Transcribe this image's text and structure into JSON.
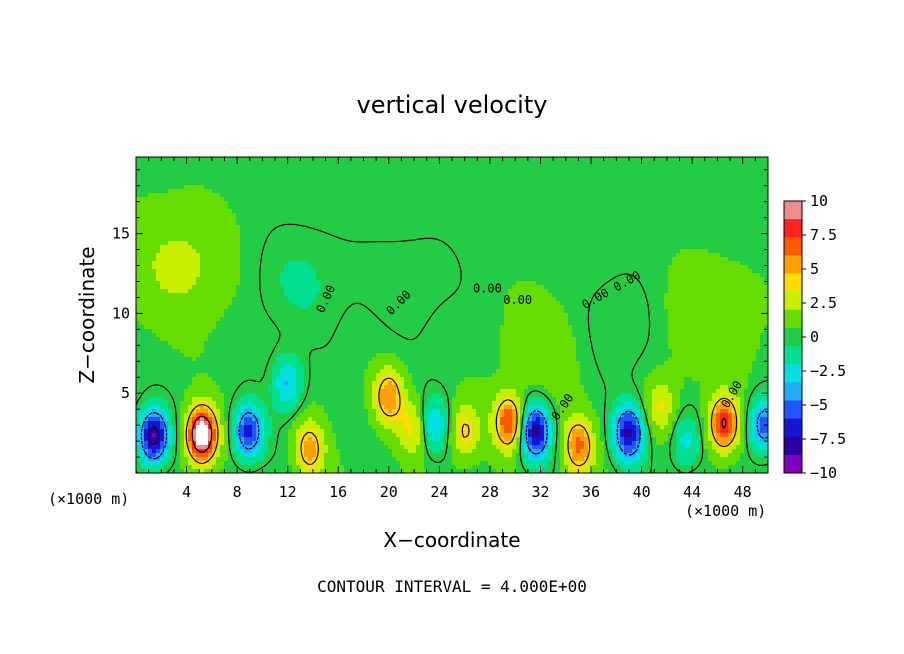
{
  "chart_data": {
    "type": "heatmap",
    "title": "vertical velocity",
    "xlabel": "X−coordinate",
    "ylabel": "Z−coordinate",
    "x_unit_left": "(×1000 m)",
    "x_unit_right": "(×1000 m)",
    "footer": "CONTOUR INTERVAL = 4.000E+00",
    "xlim": [
      0,
      50
    ],
    "ylim": [
      0,
      19.8
    ],
    "x_ticks": [
      4,
      8,
      12,
      16,
      20,
      24,
      28,
      32,
      36,
      40,
      44,
      48
    ],
    "y_ticks": [
      5,
      10,
      15
    ],
    "colorbar": {
      "range": [
        -10,
        10
      ],
      "tick_labels": [
        "10",
        "7.5",
        "5",
        "2.5",
        "0",
        "−2.5",
        "−5",
        "−7.5",
        "−10"
      ],
      "tick_values": [
        10,
        7.5,
        5,
        2.5,
        0,
        -2.5,
        -5,
        -7.5,
        -10
      ],
      "colors": [
        "#f08c8c",
        "#ff2020",
        "#ff5a00",
        "#ffa000",
        "#ffdd00",
        "#c8ee00",
        "#66dd00",
        "#22cc44",
        "#00e090",
        "#00e0e0",
        "#22aaff",
        "#2255ff",
        "#1515d8",
        "#2a00a0",
        "#8000c0"
      ]
    },
    "contour_labels": [
      {
        "text": "0.00",
        "x": 15.3,
        "y": 10.8,
        "rot": -65
      },
      {
        "text": "0.00",
        "x": 27.8,
        "y": 11.3,
        "rot": 0
      },
      {
        "text": "0.00",
        "x": 30.2,
        "y": 10.6,
        "rot": 0
      },
      {
        "text": "0.00",
        "x": 36.5,
        "y": 10.7,
        "rot": -30
      },
      {
        "text": "0.00",
        "x": 39.0,
        "y": 11.8,
        "rot": -30
      },
      {
        "text": "0.00",
        "x": 47.4,
        "y": 4.8,
        "rot": -60
      },
      {
        "text": "0.00",
        "x": 34.0,
        "y": 4.0,
        "rot": -55
      },
      {
        "text": "0.00",
        "x": 21.0,
        "y": 10.5,
        "rot": -45
      }
    ],
    "features": [
      {
        "x": 1.4,
        "z": 2.3,
        "w": -9.5
      },
      {
        "x": 5.2,
        "z": 2.4,
        "w": 12.0
      },
      {
        "x": 8.9,
        "z": 2.6,
        "w": -7.0
      },
      {
        "x": 12.0,
        "z": 5.6,
        "w": -4.0
      },
      {
        "x": 13.7,
        "z": 1.5,
        "w": 5.0
      },
      {
        "x": 20.0,
        "z": 4.8,
        "w": 5.5
      },
      {
        "x": 22.0,
        "z": 2.8,
        "w": 3.5
      },
      {
        "x": 23.5,
        "z": 3.0,
        "w": -4.0
      },
      {
        "x": 26.0,
        "z": 2.6,
        "w": 4.0
      },
      {
        "x": 29.5,
        "z": 3.2,
        "w": 7.0
      },
      {
        "x": 31.6,
        "z": 2.6,
        "w": -8.5
      },
      {
        "x": 35.0,
        "z": 1.7,
        "w": 6.0
      },
      {
        "x": 39.0,
        "z": 2.5,
        "w": -8.0
      },
      {
        "x": 41.5,
        "z": 4.2,
        "w": 3.0
      },
      {
        "x": 43.5,
        "z": 2.0,
        "w": -3.0
      },
      {
        "x": 46.5,
        "z": 3.1,
        "w": 8.0
      },
      {
        "x": 49.7,
        "z": 3.0,
        "w": -6.0
      },
      {
        "x": 3.5,
        "z": 13.0,
        "w": 2.0
      },
      {
        "x": 13.0,
        "z": 12.0,
        "w": -1.2
      },
      {
        "x": 22.0,
        "z": 12.0,
        "w": -0.8
      },
      {
        "x": 33.0,
        "z": 8.0,
        "w": 1.2
      },
      {
        "x": 38.0,
        "z": 9.0,
        "w": -1.3
      },
      {
        "x": 45.0,
        "z": 9.5,
        "w": 1.5
      }
    ]
  }
}
